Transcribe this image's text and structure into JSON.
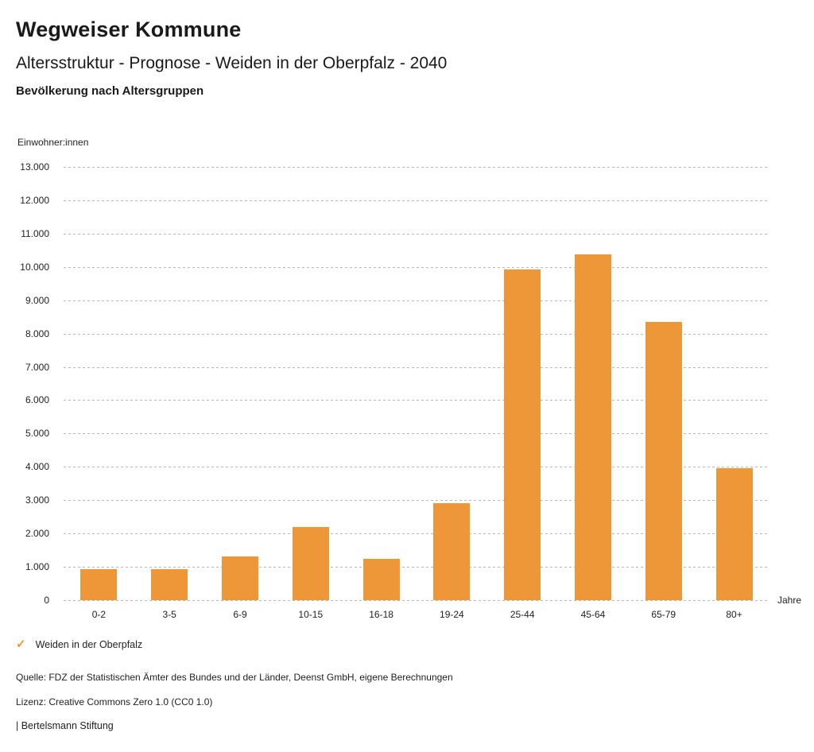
{
  "header": {
    "title": "Wegweiser Kommune",
    "subtitle": "Altersstruktur - Prognose - Weiden in der Oberpfalz - 2040",
    "section_title": "Bevölkerung nach Altersgruppen"
  },
  "chart_data": {
    "type": "bar",
    "title": "Bevölkerung nach Altersgruppen",
    "categories": [
      "0-2",
      "3-5",
      "6-9",
      "10-15",
      "16-18",
      "19-24",
      "25-44",
      "45-64",
      "65-79",
      "80+"
    ],
    "series": [
      {
        "name": "Weiden in der Oberpfalz",
        "values": [
          930,
          930,
          1320,
          2190,
          1230,
          2900,
          9930,
          10380,
          8350,
          3950
        ]
      }
    ],
    "xlabel": "Jahre",
    "ylabel": "Einwohner:innen",
    "ylim": [
      0,
      13000
    ],
    "y_tick_step": 1000,
    "y_tick_labels": [
      "0",
      "1.000",
      "2.000",
      "3.000",
      "4.000",
      "5.000",
      "6.000",
      "7.000",
      "8.000",
      "9.000",
      "10.000",
      "11.000",
      "12.000",
      "13.000"
    ],
    "grid": "horizontal-dotted",
    "legend_position": "bottom-left"
  },
  "legend": {
    "check_icon": "✓",
    "label": "Weiden in der Oberpfalz"
  },
  "footer": {
    "source": "Quelle: FDZ der Statistischen Ämter des Bundes und der Länder, Deenst GmbH, eigene Berechnungen",
    "license": "Lizenz: Creative Commons Zero 1.0 (CC0 1.0)",
    "attribution": "| Bertelsmann Stiftung"
  },
  "colors": {
    "bar": "#ED9738",
    "accent_check": "#ED9738",
    "grid": "#b9b9b9",
    "text": "#1a1a1a"
  }
}
